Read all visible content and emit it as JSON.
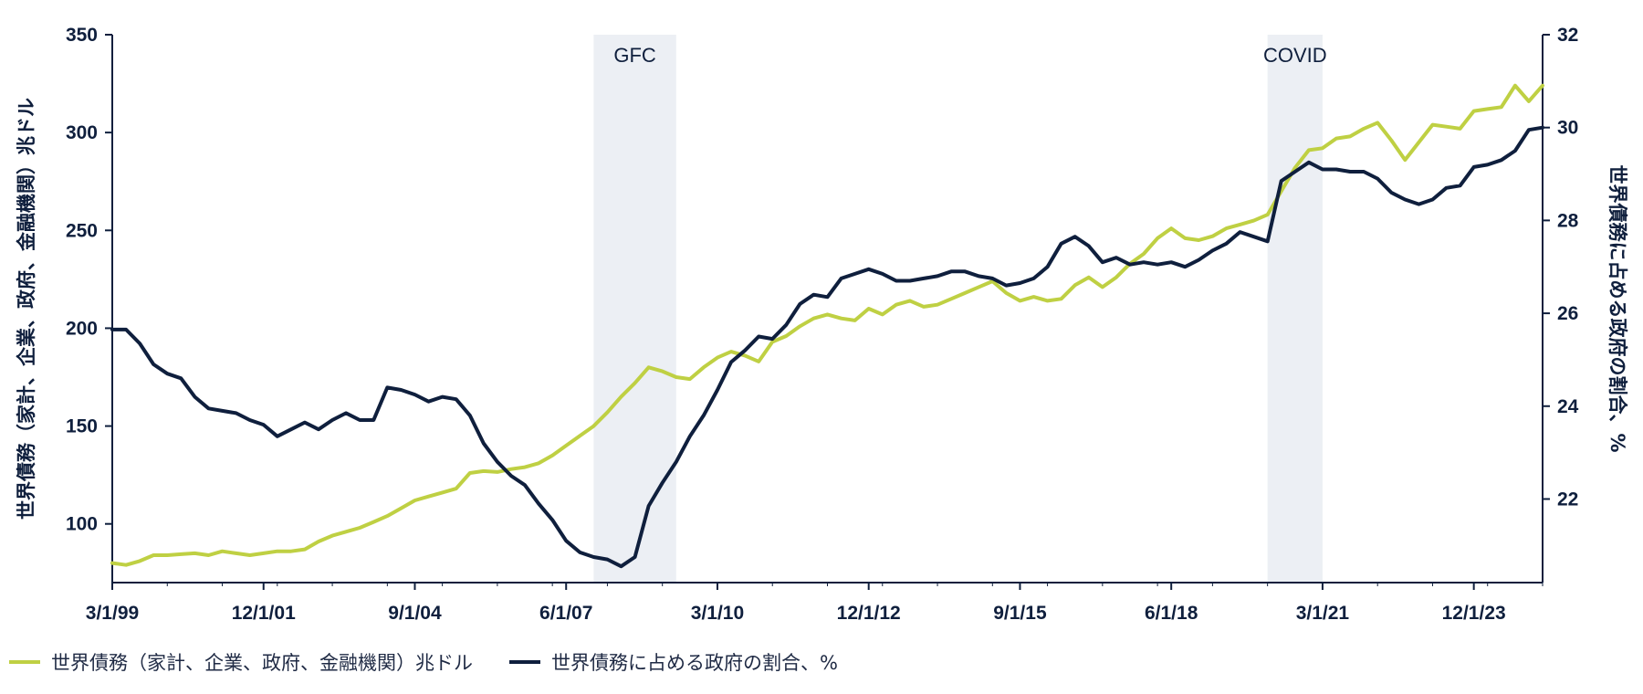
{
  "chart_data": {
    "type": "line",
    "x_ticks": [
      "3/1/99",
      "12/1/01",
      "9/1/04",
      "6/1/07",
      "3/1/10",
      "12/1/12",
      "9/1/15",
      "6/1/18",
      "3/1/21",
      "12/1/23"
    ],
    "x_range": [
      "1999-03",
      "2025-03"
    ],
    "left_axis": {
      "label": "世界債務（家計、企業、政府、金融機関）兆ドル",
      "range": [
        70,
        350
      ],
      "ticks": [
        100,
        150,
        200,
        250,
        300,
        350
      ]
    },
    "right_axis": {
      "label": "世界債務に占める政府の割合、%",
      "range": [
        20.2,
        32
      ],
      "ticks": [
        22,
        24,
        26,
        28,
        30,
        32
      ]
    },
    "shaded_periods": [
      {
        "label": "GFC",
        "start": "2007-12",
        "end": "2009-06"
      },
      {
        "label": "COVID",
        "start": "2020-03",
        "end": "2021-03"
      }
    ],
    "series": [
      {
        "name": "世界債務（家計、企業、政府、金融機関）兆ドル",
        "axis": "left",
        "color": "#bfd043",
        "points": [
          [
            "1999-03",
            80
          ],
          [
            "1999-06",
            79
          ],
          [
            "1999-09",
            81
          ],
          [
            "1999-12",
            84
          ],
          [
            "2000-03",
            84
          ],
          [
            "2000-06",
            84.5
          ],
          [
            "2000-09",
            85
          ],
          [
            "2000-12",
            84
          ],
          [
            "2001-03",
            86
          ],
          [
            "2001-06",
            85
          ],
          [
            "2001-09",
            84
          ],
          [
            "2001-12",
            85
          ],
          [
            "2002-03",
            86
          ],
          [
            "2002-06",
            86
          ],
          [
            "2002-09",
            87
          ],
          [
            "2002-12",
            91
          ],
          [
            "2003-03",
            94
          ],
          [
            "2003-06",
            96
          ],
          [
            "2003-09",
            98
          ],
          [
            "2003-12",
            101
          ],
          [
            "2004-03",
            104
          ],
          [
            "2004-06",
            108
          ],
          [
            "2004-09",
            112
          ],
          [
            "2004-12",
            114
          ],
          [
            "2005-03",
            116
          ],
          [
            "2005-06",
            118
          ],
          [
            "2005-09",
            126
          ],
          [
            "2005-12",
            127
          ],
          [
            "2006-03",
            126.5
          ],
          [
            "2006-06",
            128
          ],
          [
            "2006-09",
            129
          ],
          [
            "2006-12",
            131
          ],
          [
            "2007-03",
            135
          ],
          [
            "2007-06",
            140
          ],
          [
            "2007-09",
            145
          ],
          [
            "2007-12",
            150
          ],
          [
            "2008-03",
            157
          ],
          [
            "2008-06",
            165
          ],
          [
            "2008-09",
            172
          ],
          [
            "2008-12",
            180
          ],
          [
            "2009-03",
            178
          ],
          [
            "2009-06",
            175
          ],
          [
            "2009-09",
            174
          ],
          [
            "2009-12",
            180
          ],
          [
            "2010-03",
            185
          ],
          [
            "2010-06",
            188
          ],
          [
            "2010-09",
            186
          ],
          [
            "2010-12",
            183
          ],
          [
            "2011-03",
            193
          ],
          [
            "2011-06",
            196
          ],
          [
            "2011-09",
            201
          ],
          [
            "2011-12",
            205
          ],
          [
            "2012-03",
            207
          ],
          [
            "2012-06",
            205
          ],
          [
            "2012-09",
            204
          ],
          [
            "2012-12",
            210
          ],
          [
            "2013-03",
            207
          ],
          [
            "2013-06",
            212
          ],
          [
            "2013-09",
            214
          ],
          [
            "2013-12",
            211
          ],
          [
            "2014-03",
            212
          ],
          [
            "2014-06",
            215
          ],
          [
            "2014-09",
            218
          ],
          [
            "2014-12",
            221
          ],
          [
            "2015-03",
            224
          ],
          [
            "2015-06",
            218
          ],
          [
            "2015-09",
            214
          ],
          [
            "2015-12",
            216
          ],
          [
            "2016-03",
            214
          ],
          [
            "2016-06",
            215
          ],
          [
            "2016-09",
            222
          ],
          [
            "2016-12",
            226
          ],
          [
            "2017-03",
            221
          ],
          [
            "2017-06",
            226
          ],
          [
            "2017-09",
            233
          ],
          [
            "2017-12",
            238
          ],
          [
            "2018-03",
            246
          ],
          [
            "2018-06",
            251
          ],
          [
            "2018-09",
            246
          ],
          [
            "2018-12",
            245
          ],
          [
            "2019-03",
            247
          ],
          [
            "2019-06",
            251
          ],
          [
            "2019-09",
            253
          ],
          [
            "2019-12",
            255
          ],
          [
            "2020-03",
            258
          ],
          [
            "2020-06",
            270
          ],
          [
            "2020-09",
            282
          ],
          [
            "2020-12",
            291
          ],
          [
            "2021-03",
            292
          ],
          [
            "2021-06",
            297
          ],
          [
            "2021-09",
            298
          ],
          [
            "2021-12",
            302
          ],
          [
            "2022-03",
            305
          ],
          [
            "2022-06",
            296
          ],
          [
            "2022-09",
            286
          ],
          [
            "2022-12",
            295
          ],
          [
            "2023-03",
            304
          ],
          [
            "2023-06",
            303
          ],
          [
            "2023-09",
            302
          ],
          [
            "2023-12",
            311
          ],
          [
            "2024-03",
            312
          ],
          [
            "2024-06",
            313
          ],
          [
            "2024-09",
            324
          ],
          [
            "2024-12",
            316
          ],
          [
            "2025-03",
            324
          ]
        ]
      },
      {
        "name": "世界債務に占める政府の割合、%",
        "axis": "right",
        "color": "#0f1f3d",
        "points": [
          [
            "1999-03",
            25.65
          ],
          [
            "1999-06",
            25.65
          ],
          [
            "1999-09",
            25.35
          ],
          [
            "1999-12",
            24.9
          ],
          [
            "2000-03",
            24.7
          ],
          [
            "2000-06",
            24.6
          ],
          [
            "2000-09",
            24.2
          ],
          [
            "2000-12",
            23.95
          ],
          [
            "2001-03",
            23.9
          ],
          [
            "2001-06",
            23.85
          ],
          [
            "2001-09",
            23.7
          ],
          [
            "2001-12",
            23.6
          ],
          [
            "2002-03",
            23.35
          ],
          [
            "2002-06",
            23.5
          ],
          [
            "2002-09",
            23.65
          ],
          [
            "2002-12",
            23.5
          ],
          [
            "2003-03",
            23.7
          ],
          [
            "2003-06",
            23.85
          ],
          [
            "2003-09",
            23.7
          ],
          [
            "2003-12",
            23.7
          ],
          [
            "2004-03",
            24.4
          ],
          [
            "2004-06",
            24.35
          ],
          [
            "2004-09",
            24.25
          ],
          [
            "2004-12",
            24.1
          ],
          [
            "2005-03",
            24.2
          ],
          [
            "2005-06",
            24.15
          ],
          [
            "2005-09",
            23.8
          ],
          [
            "2005-12",
            23.2
          ],
          [
            "2006-03",
            22.8
          ],
          [
            "2006-06",
            22.5
          ],
          [
            "2006-09",
            22.3
          ],
          [
            "2006-12",
            21.9
          ],
          [
            "2007-03",
            21.55
          ],
          [
            "2007-06",
            21.1
          ],
          [
            "2007-09",
            20.85
          ],
          [
            "2007-12",
            20.75
          ],
          [
            "2008-03",
            20.7
          ],
          [
            "2008-06",
            20.55
          ],
          [
            "2008-09",
            20.75
          ],
          [
            "2008-12",
            21.85
          ],
          [
            "2009-03",
            22.35
          ],
          [
            "2009-06",
            22.8
          ],
          [
            "2009-09",
            23.35
          ],
          [
            "2009-12",
            23.8
          ],
          [
            "2010-03",
            24.35
          ],
          [
            "2010-06",
            24.95
          ],
          [
            "2010-09",
            25.2
          ],
          [
            "2010-12",
            25.5
          ],
          [
            "2011-03",
            25.45
          ],
          [
            "2011-06",
            25.75
          ],
          [
            "2011-09",
            26.2
          ],
          [
            "2011-12",
            26.4
          ],
          [
            "2012-03",
            26.35
          ],
          [
            "2012-06",
            26.75
          ],
          [
            "2012-09",
            26.85
          ],
          [
            "2012-12",
            26.95
          ],
          [
            "2013-03",
            26.85
          ],
          [
            "2013-06",
            26.7
          ],
          [
            "2013-09",
            26.7
          ],
          [
            "2013-12",
            26.75
          ],
          [
            "2014-03",
            26.8
          ],
          [
            "2014-06",
            26.9
          ],
          [
            "2014-09",
            26.9
          ],
          [
            "2014-12",
            26.8
          ],
          [
            "2015-03",
            26.75
          ],
          [
            "2015-06",
            26.6
          ],
          [
            "2015-09",
            26.65
          ],
          [
            "2015-12",
            26.75
          ],
          [
            "2016-03",
            27
          ],
          [
            "2016-06",
            27.5
          ],
          [
            "2016-09",
            27.65
          ],
          [
            "2016-12",
            27.45
          ],
          [
            "2017-03",
            27.1
          ],
          [
            "2017-06",
            27.2
          ],
          [
            "2017-09",
            27.05
          ],
          [
            "2017-12",
            27.1
          ],
          [
            "2018-03",
            27.05
          ],
          [
            "2018-06",
            27.1
          ],
          [
            "2018-09",
            27.0
          ],
          [
            "2018-12",
            27.15
          ],
          [
            "2019-03",
            27.35
          ],
          [
            "2019-06",
            27.5
          ],
          [
            "2019-09",
            27.75
          ],
          [
            "2019-12",
            27.65
          ],
          [
            "2020-03",
            27.55
          ],
          [
            "2020-06",
            28.85
          ],
          [
            "2020-09",
            29.05
          ],
          [
            "2020-12",
            29.25
          ],
          [
            "2021-03",
            29.1
          ],
          [
            "2021-06",
            29.1
          ],
          [
            "2021-09",
            29.05
          ],
          [
            "2021-12",
            29.05
          ],
          [
            "2022-03",
            28.9
          ],
          [
            "2022-06",
            28.6
          ],
          [
            "2022-09",
            28.45
          ],
          [
            "2022-12",
            28.35
          ],
          [
            "2023-03",
            28.45
          ],
          [
            "2023-06",
            28.7
          ],
          [
            "2023-09",
            28.75
          ],
          [
            "2023-12",
            29.15
          ],
          [
            "2024-03",
            29.2
          ],
          [
            "2024-06",
            29.3
          ],
          [
            "2024-09",
            29.5
          ],
          [
            "2024-12",
            29.95
          ],
          [
            "2025-03",
            30.0
          ]
        ]
      }
    ]
  }
}
